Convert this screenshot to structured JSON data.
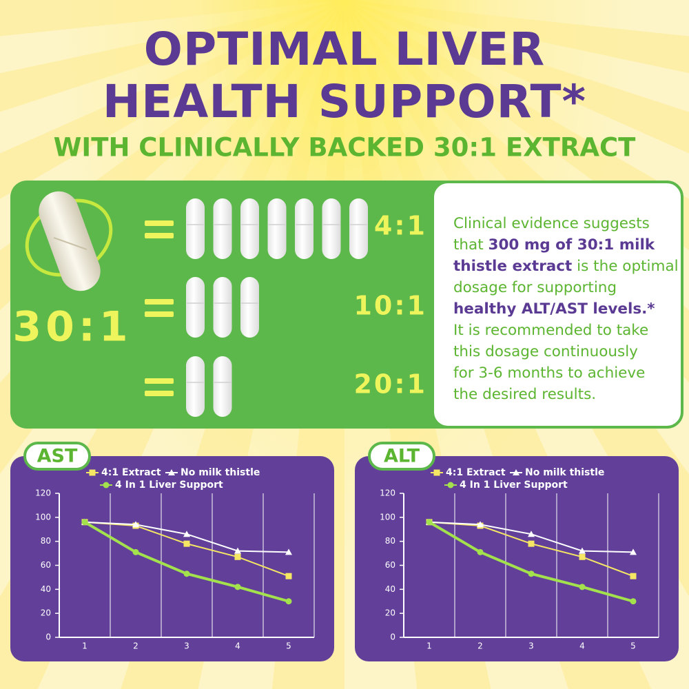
{
  "header": {
    "title_lines": [
      "OPTIMAL LIVER",
      "HEALTH SUPPORT*"
    ],
    "subtitle": "WITH CLINICALLY BACKED 30:1 EXTRACT"
  },
  "comparison": {
    "main_ratio": "30:1",
    "ratios": [
      "4:1",
      "10:1",
      "20:1"
    ]
  },
  "info": {
    "lines": [
      [
        {
          "text": "Clinical evidence suggests"
        }
      ],
      [
        {
          "text": "that "
        },
        {
          "text": "300 mg of 30:1 milk",
          "bold": true
        }
      ],
      [
        {
          "text": "thistle extract",
          "bold": true
        },
        {
          "text": " is the optimal"
        }
      ],
      [
        {
          "text": "dosage for supporting"
        }
      ],
      [
        {
          "text": "healthy ALT/AST levels.*",
          "bold": true
        }
      ],
      [
        {
          "text": "It is recommended to take"
        }
      ],
      [
        {
          "text": "this dosage continuously"
        }
      ],
      [
        {
          "text": "for 3-6 months to achieve"
        }
      ],
      [
        {
          "text": "the desired results."
        }
      ]
    ]
  },
  "chart_data": [
    {
      "type": "line",
      "title": "AST",
      "categories": [
        "1",
        "2",
        "3",
        "4",
        "5"
      ],
      "ylim": [
        0,
        120
      ],
      "yticks": [
        0,
        20,
        40,
        60,
        80,
        100,
        120
      ],
      "grid": true,
      "series": [
        {
          "name": "4:1 Extract",
          "color": "#f5e663",
          "marker": "square",
          "values": [
            96,
            93,
            78,
            67,
            51
          ]
        },
        {
          "name": "No milk thistle",
          "color": "#ffffff",
          "marker": "triangle",
          "values": [
            96,
            94,
            86,
            72,
            71
          ]
        },
        {
          "name": "4 In 1 Liver Support",
          "color": "#a3e24c",
          "marker": "circle",
          "values": [
            96,
            71,
            53,
            42,
            30
          ]
        }
      ]
    },
    {
      "type": "line",
      "title": "ALT",
      "categories": [
        "1",
        "2",
        "3",
        "4",
        "5"
      ],
      "ylim": [
        0,
        120
      ],
      "yticks": [
        0,
        20,
        40,
        60,
        80,
        100,
        120
      ],
      "grid": true,
      "series": [
        {
          "name": "4:1 Extract",
          "color": "#f5e663",
          "marker": "square",
          "values": [
            96,
            93,
            78,
            67,
            51
          ]
        },
        {
          "name": "No milk thistle",
          "color": "#ffffff",
          "marker": "triangle",
          "values": [
            96,
            94,
            86,
            72,
            71
          ]
        },
        {
          "name": "4 In 1 Liver Support",
          "color": "#a3e24c",
          "marker": "circle",
          "values": [
            96,
            71,
            53,
            42,
            30
          ]
        }
      ]
    }
  ]
}
